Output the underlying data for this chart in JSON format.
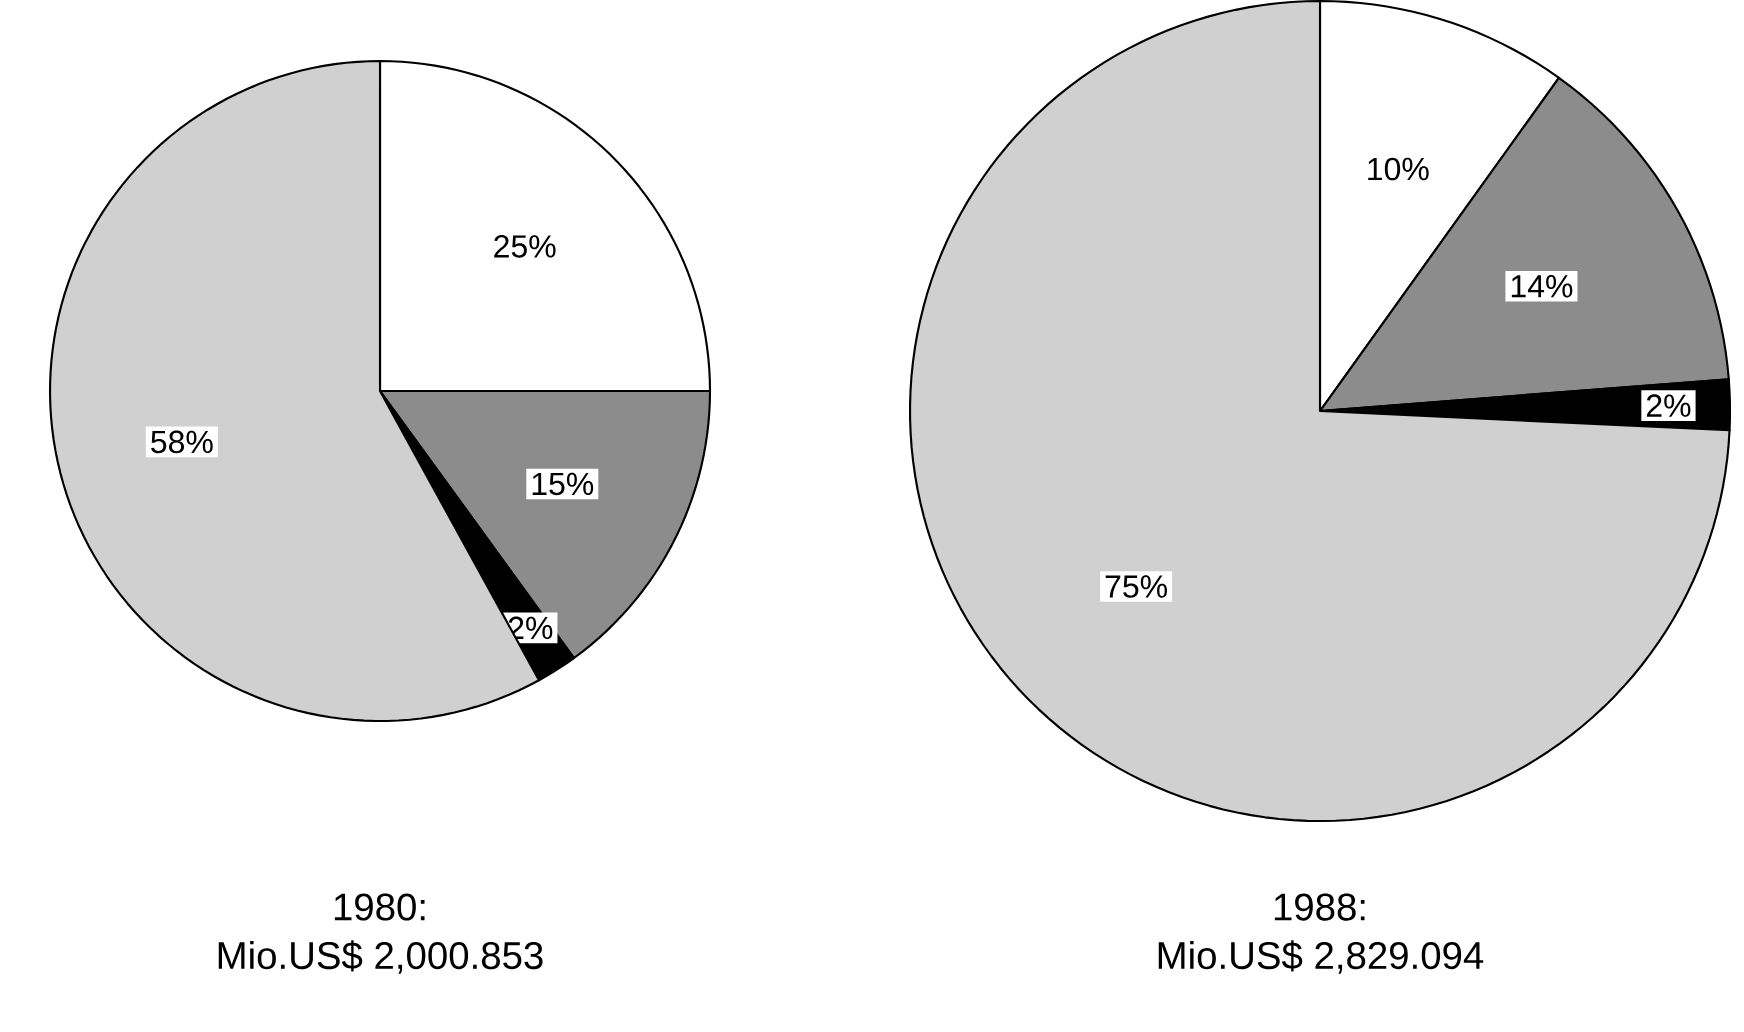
{
  "chart_data": [
    {
      "type": "pie",
      "title": "1980:",
      "subtitle": "Mio.US$ 2,000.853",
      "categories": [
        null,
        null,
        null,
        null
      ],
      "values": [
        25,
        15,
        2,
        58
      ],
      "colors": [
        "#ffffff",
        "#8c8c8c",
        "#000000",
        "#d0d0d0"
      ],
      "value_labels": [
        "25%",
        "15%",
        "2%",
        "58%"
      ]
    },
    {
      "type": "pie",
      "title": "1988:",
      "subtitle": "Mio.US$ 2,829.094",
      "categories": [
        null,
        null,
        null,
        null
      ],
      "values": [
        10,
        14,
        2,
        75
      ],
      "colors": [
        "#ffffff",
        "#8c8c8c",
        "#000000",
        "#d0d0d0"
      ],
      "value_labels": [
        "10%",
        "14%",
        "2%",
        "75%"
      ]
    }
  ]
}
